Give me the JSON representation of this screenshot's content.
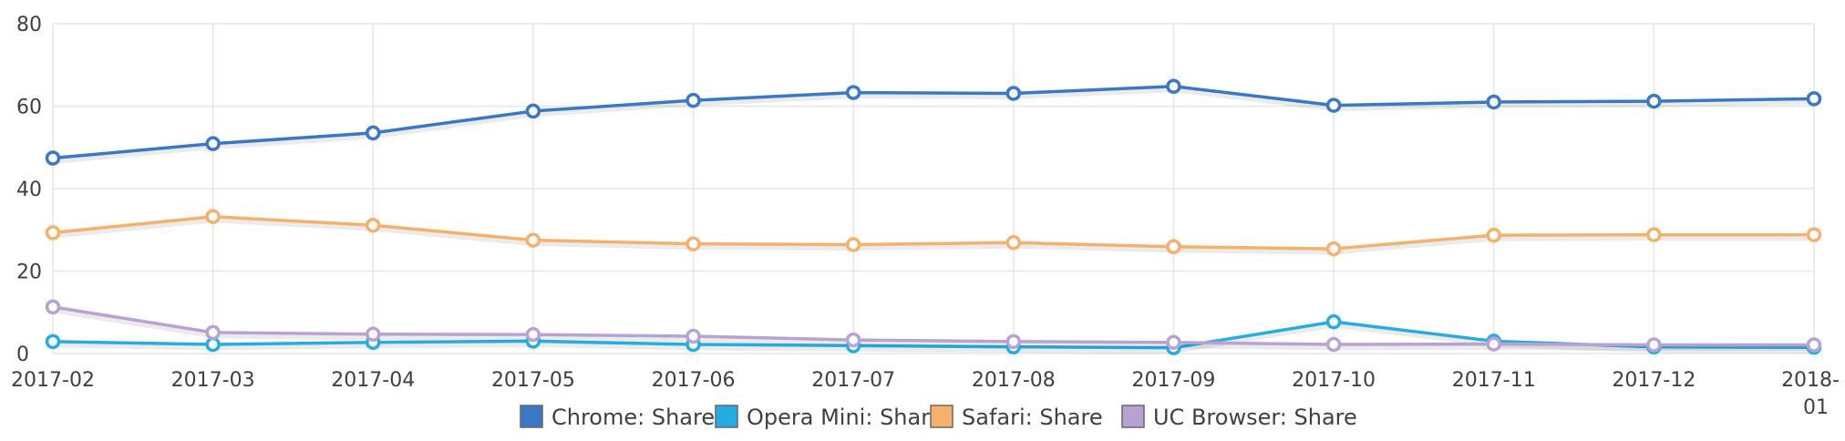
{
  "chart_data": {
    "type": "line",
    "title": "",
    "xlabel": "",
    "ylabel": "",
    "x": [
      "2017-02",
      "2017-03",
      "2017-04",
      "2017-05",
      "2017-06",
      "2017-07",
      "2017-08",
      "2017-09",
      "2017-10",
      "2017-11",
      "2017-12",
      "2018-01"
    ],
    "ylim": [
      0,
      80
    ],
    "yticks": [
      0,
      20,
      40,
      60,
      80
    ],
    "grid": true,
    "legend_position": "bottom-center",
    "series": [
      {
        "name": "Chrome: Share",
        "color": "#3a78c3",
        "values": [
          47.4,
          50.9,
          53.5,
          58.8,
          61.4,
          63.3,
          63.1,
          64.8,
          60.2,
          61.0,
          61.2,
          61.8
        ]
      },
      {
        "name": "Opera Mini: Share",
        "color": "#25ade3",
        "values": [
          2.9,
          2.2,
          2.7,
          3.0,
          2.2,
          1.9,
          1.6,
          1.4,
          7.7,
          3.0,
          1.6,
          1.5
        ]
      },
      {
        "name": "Safari: Share",
        "color": "#f5b06c",
        "values": [
          29.3,
          33.2,
          31.1,
          27.5,
          26.6,
          26.4,
          26.9,
          25.9,
          25.4,
          28.7,
          28.8,
          28.8
        ]
      },
      {
        "name": "UC Browser: Share",
        "color": "#b7a2d3",
        "values": [
          11.3,
          5.1,
          4.7,
          4.6,
          4.2,
          3.3,
          2.9,
          2.7,
          2.2,
          2.3,
          2.1,
          2.1
        ]
      }
    ]
  }
}
